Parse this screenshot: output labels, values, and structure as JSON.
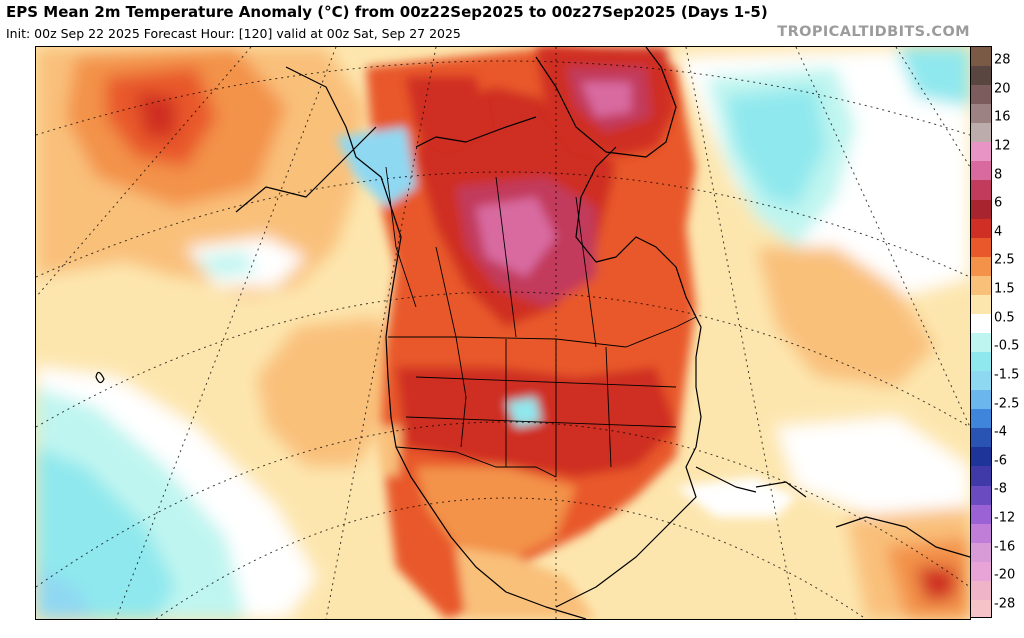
{
  "header": {
    "title": "EPS Mean 2m Temperature Anomaly (°C) from 00z22Sep2025 to 00z27Sep2025 (Days 1-5)",
    "subtitle": "Init: 00z Sep 22 2025   Forecast Hour: [120]   valid at 00z Sat, Sep 27 2025",
    "brand": "TROPICALTIDBITS.COM"
  },
  "colorbar": {
    "labels": [
      "28",
      "20",
      "16",
      "12",
      "8",
      "6",
      "4",
      "2.5",
      "1.5",
      "0.5",
      "-0.5",
      "-1.5",
      "-2.5",
      "-4",
      "-6",
      "-8",
      "-12",
      "-16",
      "-20",
      "-28"
    ],
    "colors": [
      "#7a5a44",
      "#5a4640",
      "#7c5c5c",
      "#9c8282",
      "#bdacac",
      "#e894c4",
      "#d86aa0",
      "#c23a5c",
      "#a8242e",
      "#cf2f24",
      "#e8582a",
      "#f39248",
      "#f9c07a",
      "#fde6ae",
      "#ffffff",
      "#bff5f0",
      "#8fe8ee",
      "#8fd8f2",
      "#6cb6ee",
      "#3f85dc",
      "#2a54b4",
      "#1f3498",
      "#3f3aa8",
      "#6b4cc0",
      "#9a62d4",
      "#c07ed8",
      "#d99ad8",
      "#e8a4d6",
      "#f0b4c8",
      "#f6c4c8"
    ]
  },
  "map": {
    "regions": [
      "North Pacific",
      "North America",
      "Greenland",
      "North Atlantic",
      "Caribbean",
      "Central America"
    ]
  }
}
